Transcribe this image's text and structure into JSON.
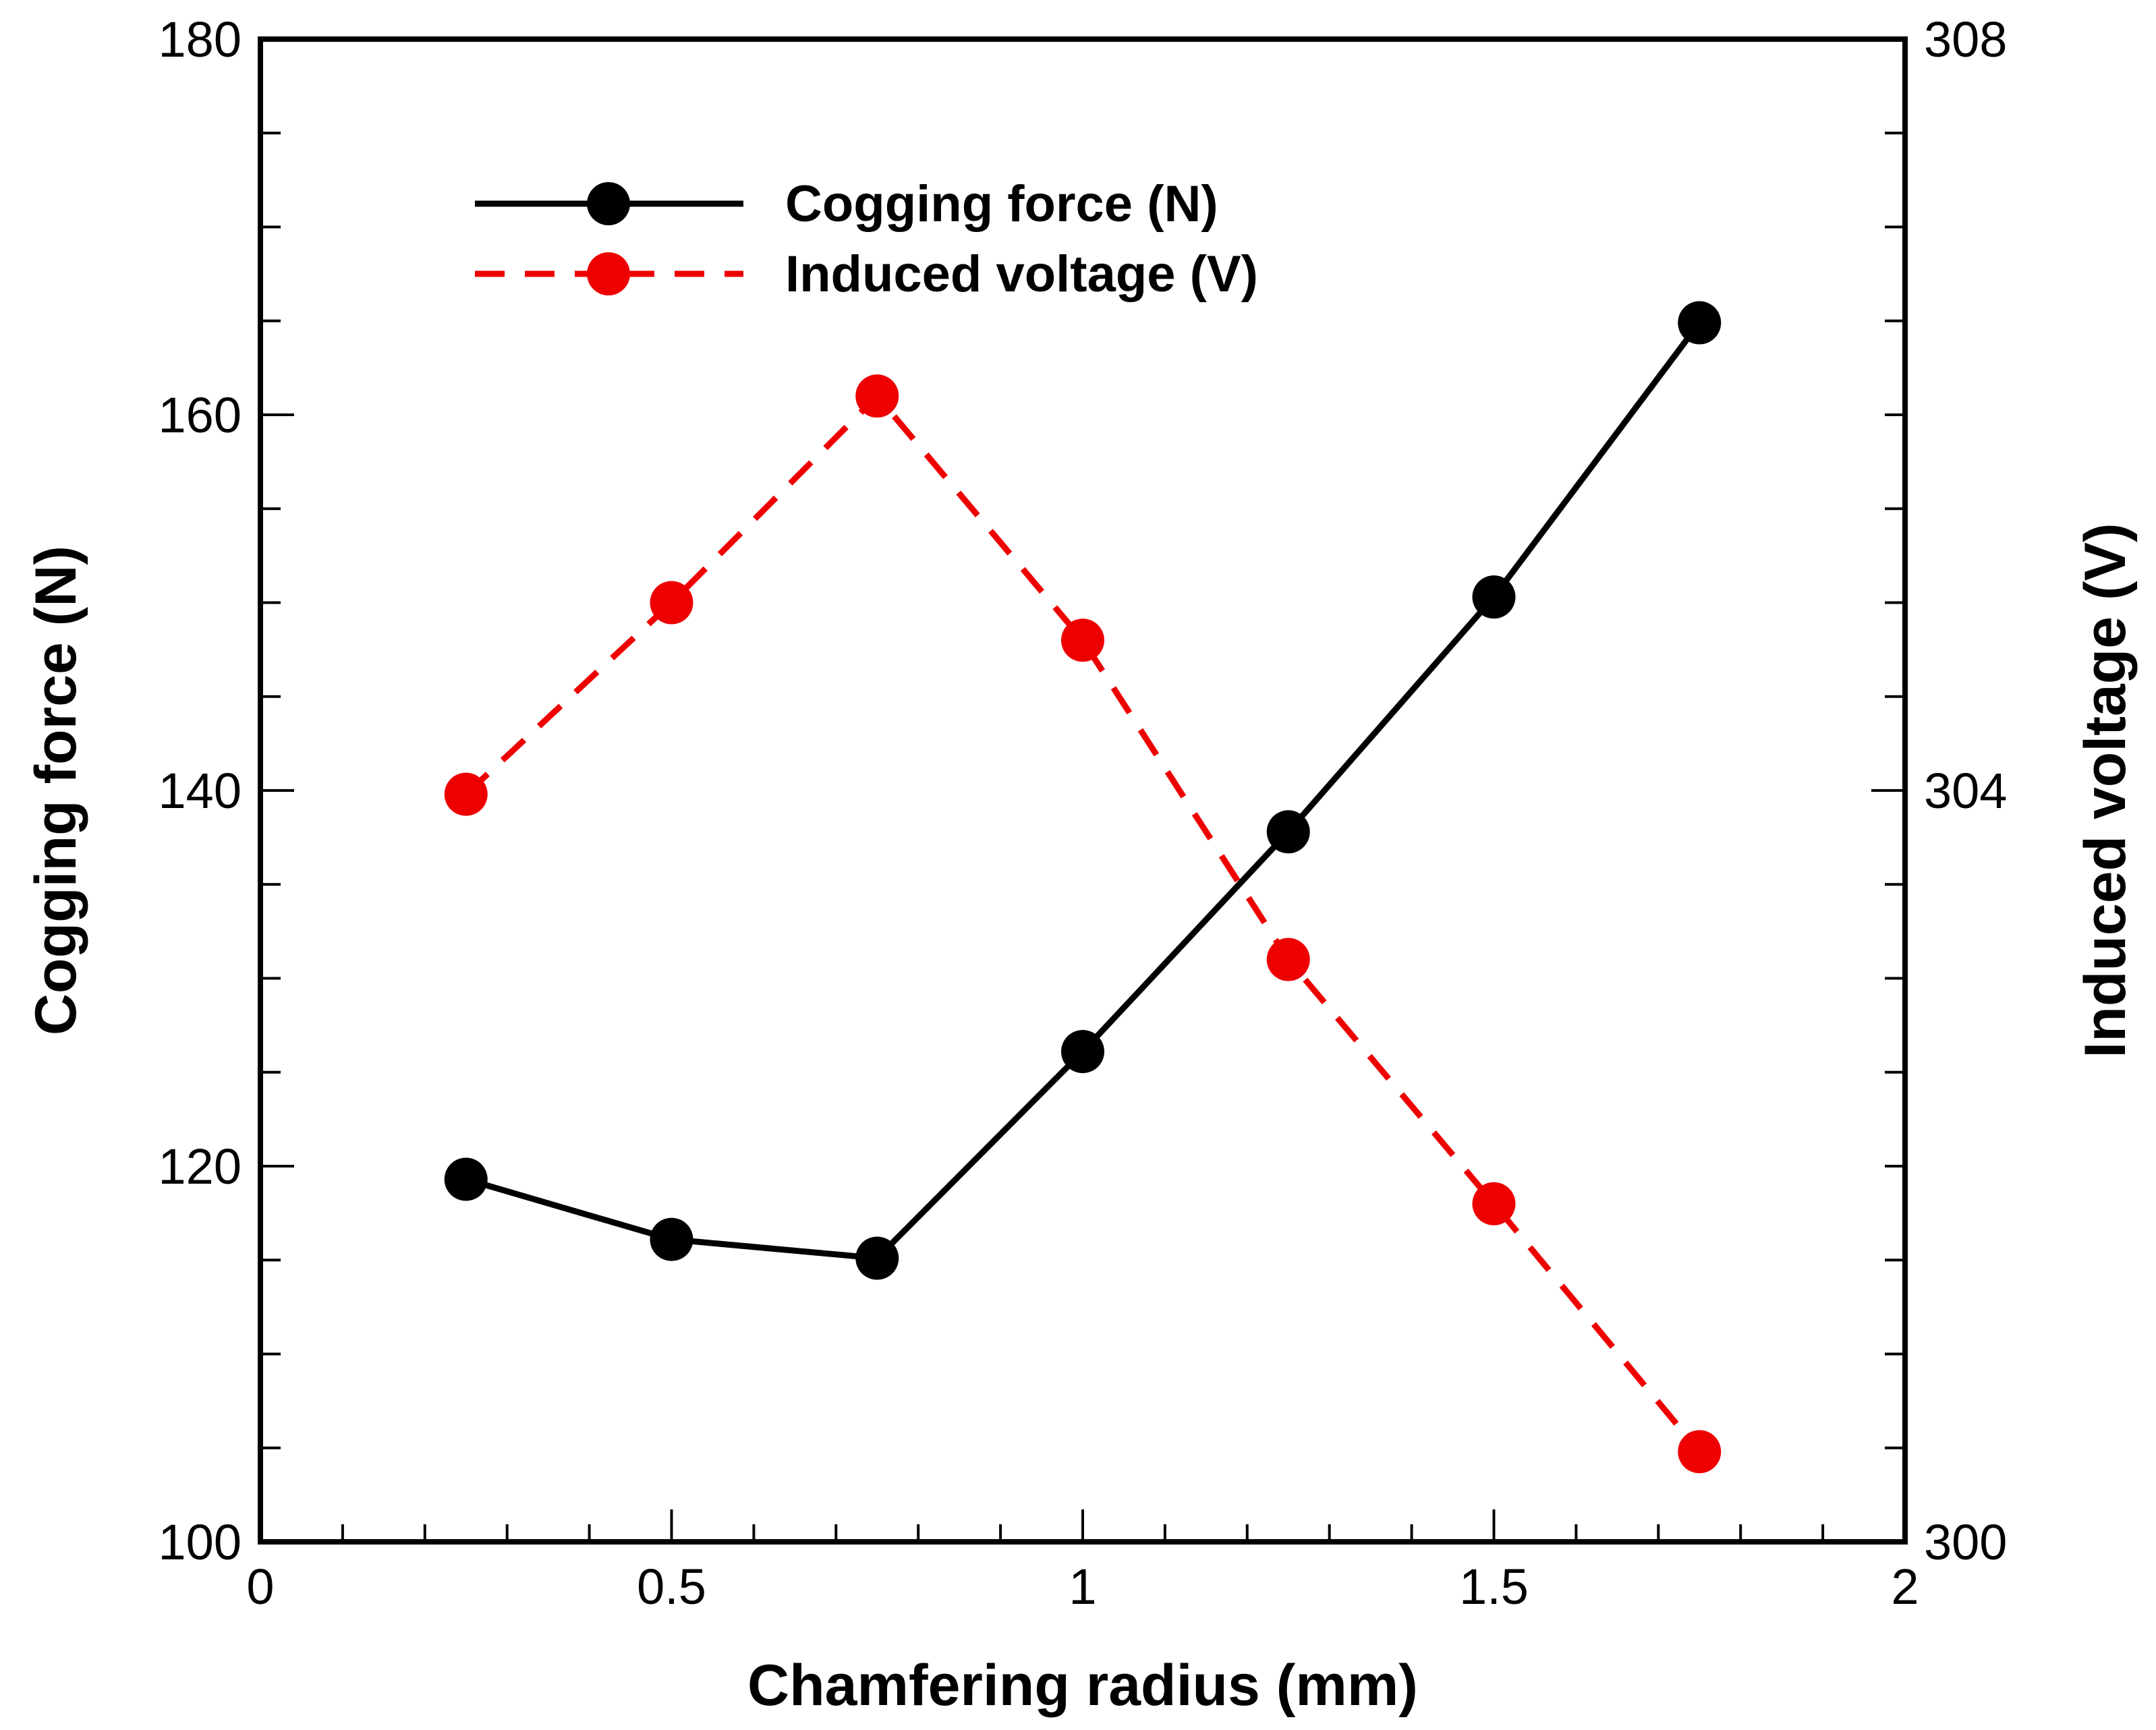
{
  "chart_data": {
    "type": "line",
    "xlabel": "Chamfering radius (mm)",
    "ylabel_left": "Cogging force (N)",
    "ylabel_right": "Induced voltage (V)",
    "xlim": [
      0,
      2
    ],
    "ylim_left": [
      100,
      180
    ],
    "ylim_right": [
      300,
      308
    ],
    "x_ticks": [
      0,
      0.5,
      1,
      1.5,
      2
    ],
    "x_tick_labels": [
      "0",
      "0.5",
      "1",
      "1.5",
      "2"
    ],
    "y_left_ticks": [
      100,
      120,
      140,
      160,
      180
    ],
    "y_left_tick_labels": [
      "100",
      "120",
      "140",
      "160",
      "180"
    ],
    "y_right_ticks": [
      300,
      304,
      308
    ],
    "y_right_tick_labels": [
      "300",
      "304",
      "308"
    ],
    "x": [
      0.25,
      0.5,
      0.75,
      1.0,
      1.25,
      1.5,
      1.75
    ],
    "series": [
      {
        "name": "Cogging force (N)",
        "axis": "left",
        "color": "#000000",
        "style": "solid",
        "values": [
          119.3,
          116.1,
          115.1,
          126.1,
          137.8,
          150.3,
          164.9
        ]
      },
      {
        "name": "Induced voltage (V)",
        "axis": "right",
        "color": "#ee0000",
        "style": "dashed",
        "values": [
          303.98,
          305.0,
          306.1,
          304.8,
          303.1,
          301.8,
          300.48
        ]
      }
    ],
    "legend_position": "top-left"
  }
}
